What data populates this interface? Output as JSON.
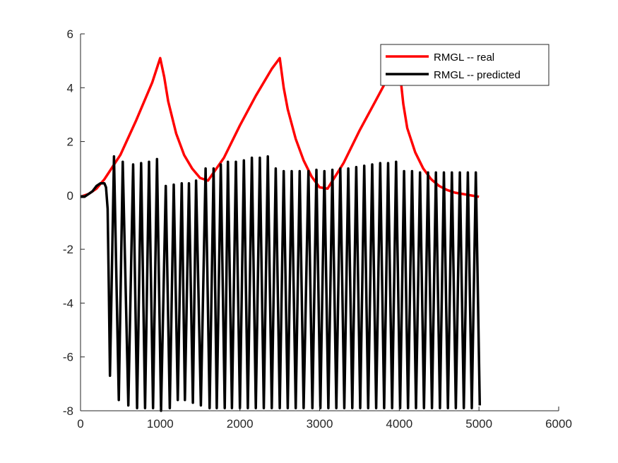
{
  "chart_data": {
    "type": "line",
    "title": "",
    "xlabel": "",
    "ylabel": "",
    "xlim": [
      0,
      6000
    ],
    "ylim": [
      -8,
      6
    ],
    "x_ticks": [
      "0",
      "1000",
      "2000",
      "3000",
      "4000",
      "5000",
      "6000"
    ],
    "y_ticks": [
      "-8",
      "-6",
      "-4",
      "-2",
      "0",
      "2",
      "4",
      "6"
    ],
    "grid": false,
    "legend_position": "top-right",
    "series": [
      {
        "name": "RMGL -- real",
        "color": "#ff0000",
        "x": [
          0,
          100,
          200,
          300,
          500,
          700,
          900,
          1000,
          1050,
          1100,
          1200,
          1300,
          1400,
          1500,
          1600,
          1800,
          2000,
          2200,
          2400,
          2500,
          2550,
          2600,
          2700,
          2800,
          2900,
          3000,
          3100,
          3300,
          3500,
          3700,
          3900,
          3960,
          4000,
          4050,
          4100,
          4200,
          4300,
          4400,
          4500,
          4600,
          4700,
          4800,
          4900,
          5000
        ],
        "y": [
          -0.05,
          0.05,
          0.25,
          0.6,
          1.5,
          2.8,
          4.2,
          5.1,
          4.4,
          3.5,
          2.3,
          1.5,
          1.0,
          0.65,
          0.55,
          1.4,
          2.6,
          3.7,
          4.7,
          5.1,
          4.0,
          3.2,
          2.1,
          1.3,
          0.7,
          0.3,
          0.25,
          1.2,
          2.4,
          3.5,
          4.6,
          4.9,
          4.8,
          3.4,
          2.5,
          1.6,
          1.0,
          0.6,
          0.35,
          0.2,
          0.1,
          0.05,
          0.0,
          -0.05
        ]
      },
      {
        "name": "RMGL -- predicted",
        "color": "#000000",
        "start_x": [
          0,
          50,
          100,
          150,
          200,
          250,
          280,
          300,
          320,
          340,
          355,
          370
        ],
        "start_y": [
          -0.05,
          -0.05,
          0.05,
          0.15,
          0.35,
          0.45,
          0.45,
          0.45,
          0.3,
          -0.5,
          -3.5,
          -6.7
        ],
        "cycle_peaks_x": [
          420,
          530,
          660,
          760,
          860,
          960,
          1070,
          1170,
          1270,
          1360,
          1450,
          1570,
          1670,
          1760,
          1850,
          1950,
          2050,
          2150,
          2250,
          2350,
          2450,
          2550,
          2650,
          2750,
          2860,
          2960,
          3060,
          3160,
          3260,
          3360,
          3460,
          3560,
          3660,
          3760,
          3860,
          3960,
          4060,
          4160,
          4260,
          4360,
          4460,
          4560,
          4660,
          4760,
          4860,
          4960
        ],
        "cycle_peaks_y": [
          1.45,
          1.25,
          1.15,
          1.2,
          1.25,
          1.35,
          0.35,
          0.4,
          0.45,
          0.45,
          0.55,
          1.0,
          1.0,
          1.15,
          1.25,
          1.25,
          1.3,
          1.4,
          1.4,
          1.45,
          1.0,
          0.9,
          0.9,
          0.9,
          0.9,
          0.95,
          0.9,
          0.95,
          1.0,
          1.0,
          1.05,
          1.1,
          1.15,
          1.2,
          1.2,
          1.25,
          0.9,
          0.9,
          0.85,
          0.85,
          0.85,
          0.85,
          0.85,
          0.85,
          0.85,
          0.85
        ],
        "cycle_troughs_x": [
          480,
          600,
          710,
          810,
          910,
          1010,
          1120,
          1220,
          1310,
          1410,
          1510,
          1620,
          1710,
          1810,
          1900,
          2000,
          2100,
          2200,
          2300,
          2400,
          2500,
          2600,
          2700,
          2800,
          2910,
          3010,
          3110,
          3210,
          3310,
          3410,
          3510,
          3610,
          3710,
          3810,
          3910,
          4010,
          4110,
          4210,
          4310,
          4410,
          4510,
          4610,
          4710,
          4810,
          4910,
          5010
        ],
        "cycle_troughs_y": [
          -7.6,
          -7.8,
          -7.9,
          -7.9,
          -7.9,
          -8.0,
          -7.9,
          -7.6,
          -7.6,
          -7.7,
          -7.8,
          -7.9,
          -7.9,
          -7.9,
          -7.9,
          -7.9,
          -7.9,
          -7.9,
          -7.9,
          -7.9,
          -7.9,
          -7.9,
          -7.9,
          -7.9,
          -7.9,
          -7.9,
          -7.9,
          -7.9,
          -7.9,
          -7.9,
          -7.9,
          -7.9,
          -7.9,
          -7.9,
          -7.9,
          -7.9,
          -7.9,
          -7.9,
          -7.9,
          -7.9,
          -7.9,
          -7.9,
          -7.9,
          -7.9,
          -7.9,
          -7.8
        ]
      }
    ]
  }
}
